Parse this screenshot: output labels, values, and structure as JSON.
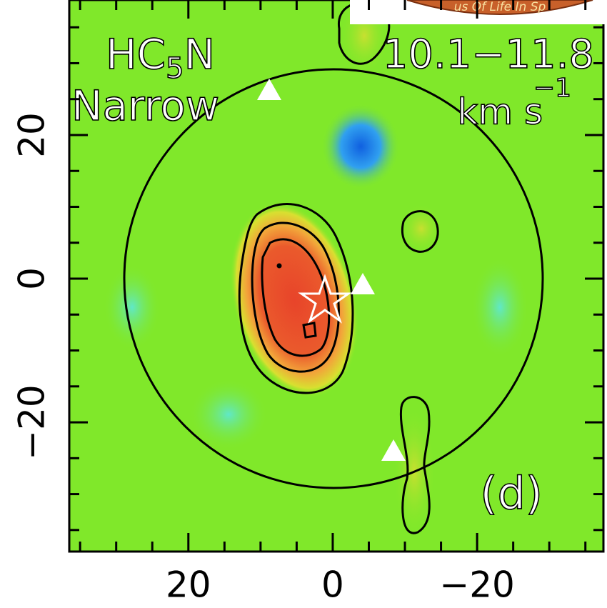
{
  "chart_data": {
    "type": "map",
    "title_parts": [
      "HC",
      "5",
      "N"
    ],
    "subtitle": "Narrow",
    "velocity_range": "10.1−11.8",
    "velocity_unit": "km s",
    "velocity_unit_exponent": "−1",
    "panel_label": "(d)",
    "overlay_text": "us Of Life In Sp",
    "xlim": [
      36.5,
      -37.5
    ],
    "ylim": [
      -38,
      38.8
    ],
    "xticks": [
      20,
      0,
      {
        "value": -20,
        "label": "−20"
      }
    ],
    "yticks": [
      {
        "value": -20,
        "label": "−20"
      },
      0,
      20
    ],
    "xminorticks": [
      35,
      30,
      25,
      15,
      10,
      5,
      -5,
      -10,
      -15,
      -25,
      -30,
      -35
    ],
    "yminorticks": [
      -35,
      -30,
      -25,
      -15,
      -10,
      -5,
      5,
      10,
      15,
      25,
      30,
      35
    ]
  }
}
